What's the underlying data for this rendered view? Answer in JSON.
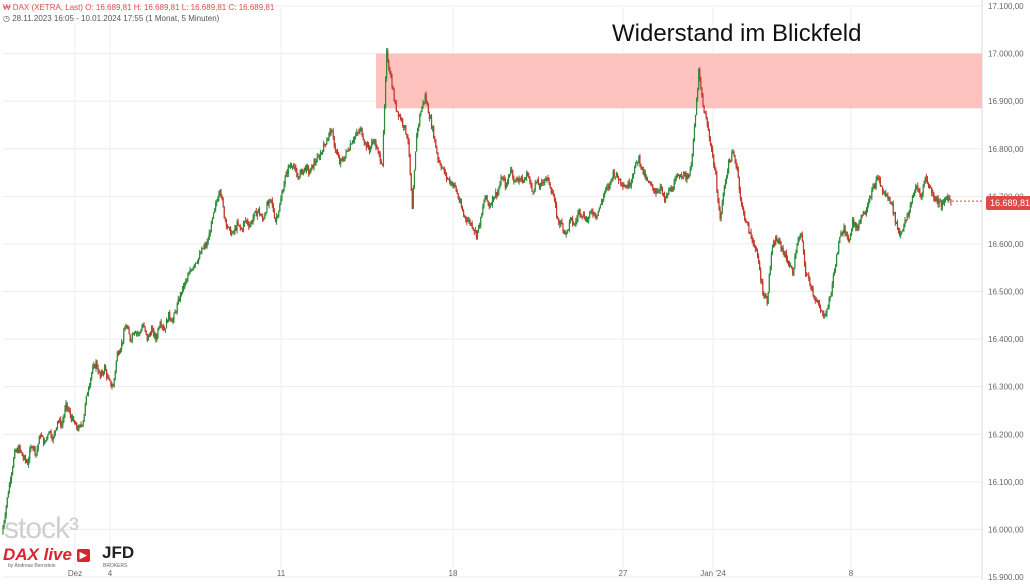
{
  "header": {
    "symbol_line": "DAX (XETRA, Last)  O: 16.689,81  H: 16.689,81  L: 16.689,81  C: 16.689,81",
    "range_line": "28.11.2023 16:05 - 10.01.2024 17:55   (1 Monat, 5 Minuten)",
    "icon": "clock-icon"
  },
  "annotation": "Widerstand im Blickfeld",
  "branding": {
    "stock3": "stock³",
    "dax_live": "DAX live",
    "dax_live_sub": "by Andreas Bernstein",
    "jfd": "JFD",
    "jfd_sub": "BROKERS"
  },
  "chart_data": {
    "type": "line",
    "title": "",
    "xlabel": "",
    "ylabel": "",
    "ylim": [
      15900,
      17100
    ],
    "y_ticks": [
      "15.900,00",
      "16.000,00",
      "16.100,00",
      "16.200,00",
      "16.300,00",
      "16.400,00",
      "16.500,00",
      "16.600,00",
      "16.700,00",
      "16.800,00",
      "16.900,00",
      "17.000,00",
      "17.100,00"
    ],
    "x_ticks": [
      "Dez",
      "4",
      "11",
      "18",
      "27",
      "Jan '24",
      "8"
    ],
    "last_value_label": "16.689,81",
    "resistance_zone": {
      "from": 16885,
      "to": 17000,
      "color": "#ffbcb8"
    },
    "colors": {
      "up": "#2e8b3a",
      "down": "#c0392b",
      "last": "#e04848"
    },
    "grid": true,
    "series": [
      {
        "values": [
          15990,
          16050,
          16110,
          16160,
          16170,
          16150,
          16140,
          16180,
          16160,
          16200,
          16180,
          16210,
          16190,
          16230,
          16220,
          16260,
          16240,
          16220,
          16210,
          16230,
          16290,
          16330,
          16350,
          16320,
          16340,
          16310,
          16300,
          16370,
          16390,
          16430,
          16400,
          16420,
          16410,
          16430,
          16400,
          16420,
          16400,
          16440,
          16420,
          16450,
          16440,
          16470,
          16500,
          16520,
          16540,
          16560,
          16570,
          16590,
          16600,
          16640,
          16680,
          16720,
          16660,
          16630,
          16620,
          16640,
          16630,
          16650,
          16640,
          16660,
          16670,
          16650,
          16680,
          16690,
          16650,
          16680,
          16730,
          16760,
          16770,
          16740,
          16750,
          16760,
          16750,
          16770,
          16780,
          16800,
          16820,
          16840,
          16800,
          16770,
          16780,
          16800,
          16820,
          16830,
          16840,
          16810,
          16800,
          16820,
          16790,
          16770,
          17000,
          16950,
          16890,
          16870,
          16850,
          16820,
          16670,
          16830,
          16880,
          16910,
          16870,
          16830,
          16780,
          16760,
          16740,
          16730,
          16720,
          16690,
          16660,
          16650,
          16640,
          16620,
          16650,
          16700,
          16680,
          16700,
          16710,
          16740,
          16720,
          16760,
          16730,
          16740,
          16730,
          16750,
          16710,
          16730,
          16720,
          16740,
          16730,
          16700,
          16650,
          16640,
          16620,
          16650,
          16640,
          16670,
          16660,
          16650,
          16670,
          16660,
          16680,
          16710,
          16720,
          16750,
          16740,
          16730,
          16720,
          16730,
          16760,
          16780,
          16750,
          16730,
          16720,
          16710,
          16720,
          16690,
          16710,
          16720,
          16740,
          16750,
          16740,
          16750,
          16840,
          16960,
          16890,
          16850,
          16800,
          16740,
          16650,
          16720,
          16770,
          16790,
          16760,
          16680,
          16650,
          16620,
          16600,
          16560,
          16500,
          16480,
          16580,
          16610,
          16600,
          16580,
          16560,
          16540,
          16600,
          16620,
          16540,
          16520,
          16490,
          16470,
          16450,
          16460,
          16500,
          16560,
          16610,
          16640,
          16600,
          16650,
          16630,
          16660,
          16670,
          16700,
          16720,
          16740,
          16710,
          16700,
          16690,
          16650,
          16620,
          16640,
          16660,
          16700,
          16720,
          16700,
          16740,
          16720,
          16700,
          16690,
          16680,
          16700,
          16689.81
        ]
      }
    ]
  }
}
